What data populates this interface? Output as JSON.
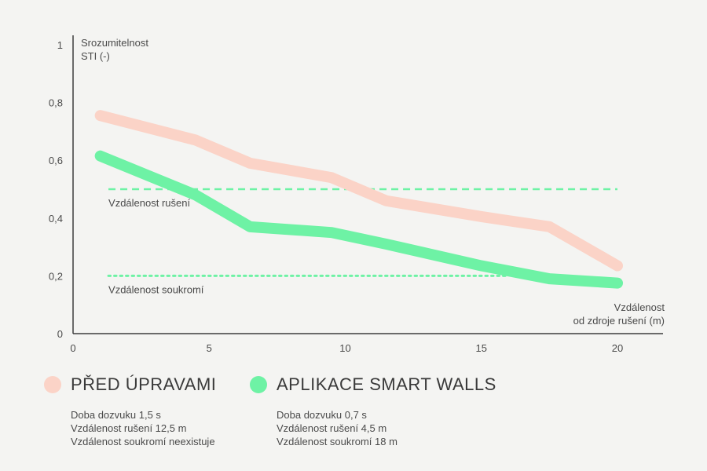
{
  "colors": {
    "before": "#fbd3c7",
    "after": "#6ef2a5",
    "axis": "#3d3d3d",
    "background": "#f4f4f2"
  },
  "chart_data": {
    "type": "line",
    "ylabel": [
      "Srozumitelnost",
      "STI (-)"
    ],
    "xlabel": [
      "Vzdálenost",
      "od zdroje rušení (m)"
    ],
    "xlim": [
      0,
      21.5
    ],
    "ylim": [
      0,
      1
    ],
    "xticks": [
      "0",
      "5",
      "10",
      "15",
      "20"
    ],
    "xtick_values": [
      0,
      5,
      10,
      15,
      20
    ],
    "yticks": [
      "0",
      "0,2",
      "0,4",
      "0,6",
      "0,8",
      "1"
    ],
    "ytick_values": [
      0,
      0.2,
      0.4,
      0.6,
      0.8,
      1
    ],
    "series": [
      {
        "name": "PŘED ÚPRAVAMI",
        "color_key": "before",
        "x": [
          1,
          4.5,
          6.5,
          9.5,
          11.5,
          15,
          17.5,
          20
        ],
        "y": [
          0.755,
          0.67,
          0.59,
          0.54,
          0.46,
          0.405,
          0.37,
          0.235
        ]
      },
      {
        "name": "APLIKACE SMART WALLS",
        "color_key": "after",
        "x": [
          1,
          4.5,
          6.5,
          9.5,
          11.5,
          15,
          17.5,
          20
        ],
        "y": [
          0.615,
          0.48,
          0.37,
          0.35,
          0.31,
          0.235,
          0.19,
          0.175
        ]
      }
    ],
    "reference_lines": [
      {
        "label": "Vzdálenost rušení",
        "y": 0.5,
        "x_from": 1.3,
        "x_to": 20,
        "style": "dashed",
        "color_key": "after"
      },
      {
        "label": "Vzdálenost soukromí",
        "y": 0.2,
        "x_from": 1.3,
        "x_to": 16,
        "style": "dotted",
        "color_key": "after"
      }
    ],
    "grid": false,
    "legend_position": "bottom"
  },
  "legend": [
    {
      "title": "PŘED ÚPRAVAMI",
      "color_key": "before",
      "notes": [
        "Doba dozvuku 1,5 s",
        "Vzdálenost rušení 12,5 m",
        "Vzdálenost soukromí neexistuje"
      ]
    },
    {
      "title": "APLIKACE SMART WALLS",
      "color_key": "after",
      "notes": [
        "Doba dozvuku 0,7 s",
        "Vzdálenost rušení 4,5 m",
        "Vzdálenost soukromí 18 m"
      ]
    }
  ]
}
